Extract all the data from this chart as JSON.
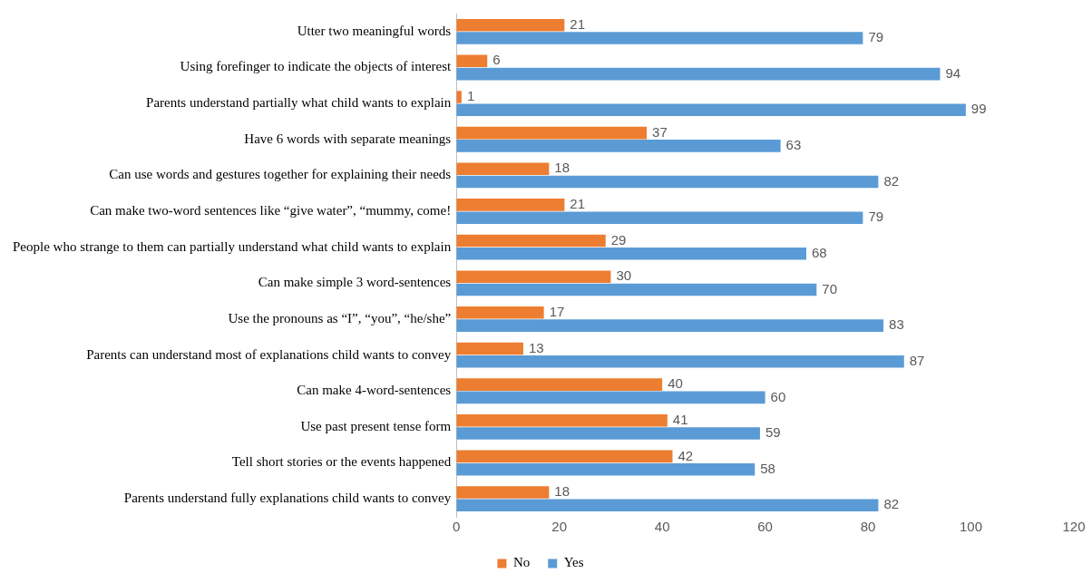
{
  "chart_data": {
    "type": "bar",
    "orientation": "horizontal",
    "categories": [
      "Utter two meaningful words",
      "Using forefinger to indicate the objects of interest",
      "Parents understand partially what child wants to explain",
      "Have 6 words with separate meanings",
      "Can use words and gestures together for explaining their needs",
      "Can make two-word sentences like “give water”, “mummy, come!",
      "People who strange to them can partially understand what child wants to explain",
      "Can make simple 3 word-sentences",
      "Use the pronouns as “I”, “you”, “he/she”",
      "Parents can understand most of explanations child wants to convey",
      "Can make 4-word-sentences",
      "Use past present tense form",
      "Tell short stories or the events happened",
      "Parents understand fully explanations child wants to convey"
    ],
    "series": [
      {
        "name": "No",
        "color": "#ed7d31",
        "values": [
          21,
          6,
          1,
          37,
          18,
          21,
          29,
          30,
          17,
          13,
          40,
          41,
          42,
          18
        ]
      },
      {
        "name": "Yes",
        "color": "#5b9bd5",
        "values": [
          79,
          94,
          99,
          63,
          82,
          79,
          68,
          70,
          83,
          87,
          60,
          59,
          58,
          82
        ]
      }
    ],
    "xlim": [
      0,
      120
    ],
    "xticks": [
      0,
      20,
      40,
      60,
      80,
      100,
      120
    ],
    "data_labels": true,
    "grid": false,
    "legend": "bottom"
  }
}
